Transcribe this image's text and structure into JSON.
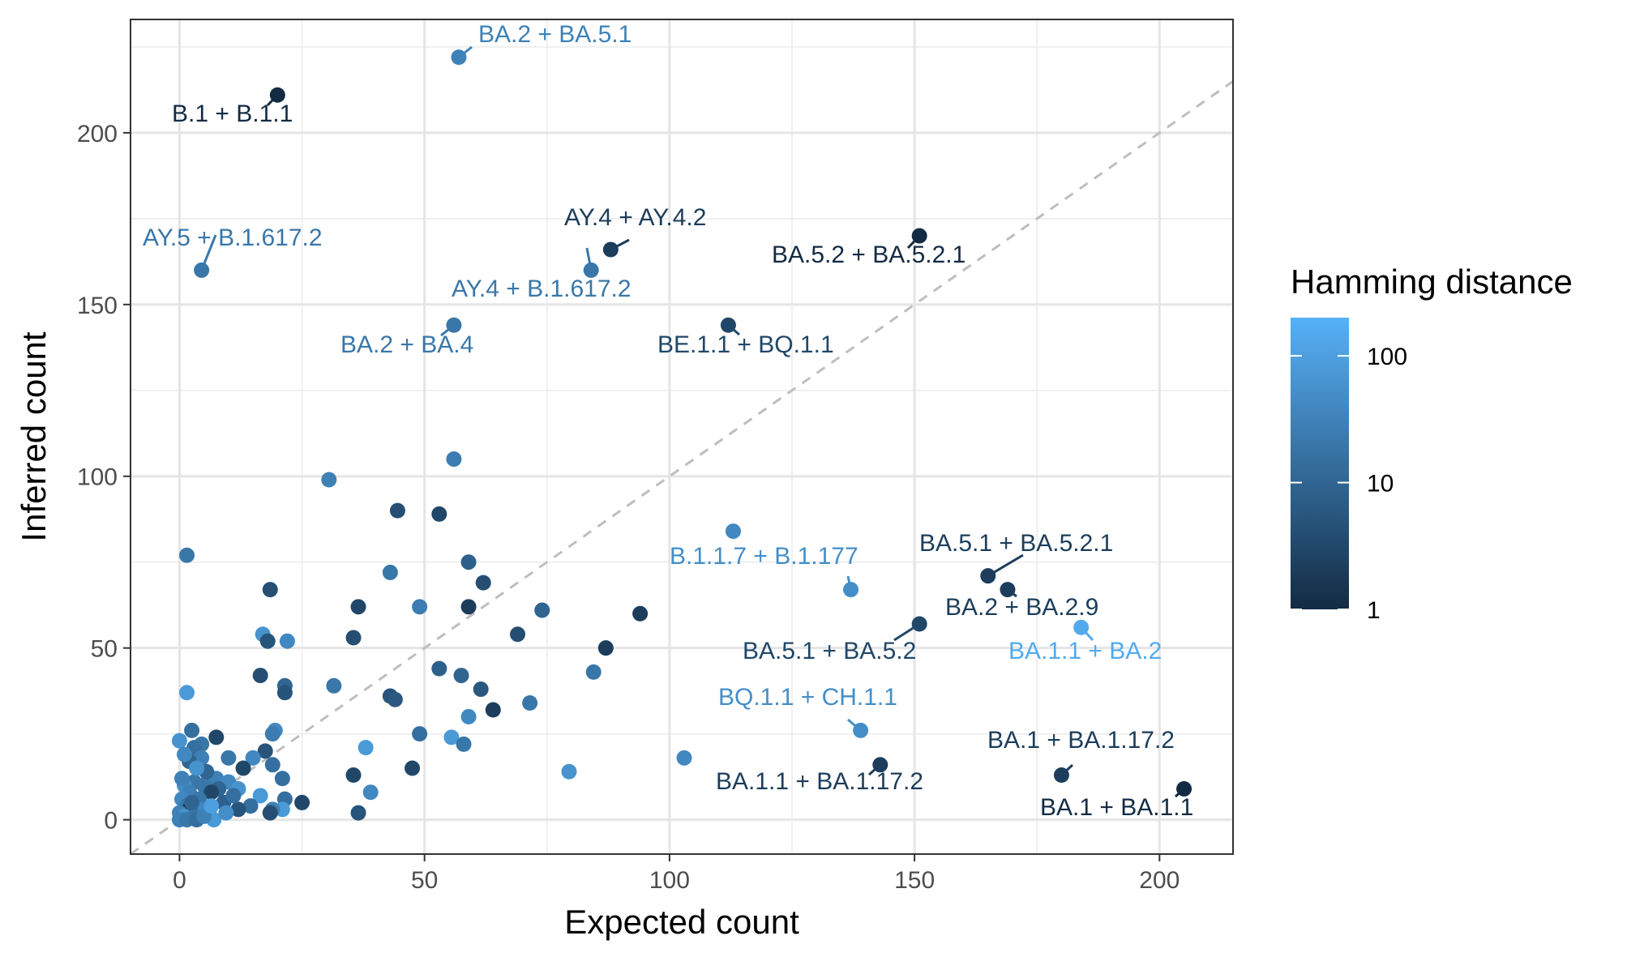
{
  "chart_data": {
    "type": "scatter",
    "xlabel": "Expected count",
    "ylabel": "Inferred count",
    "xlim": [
      -10,
      215
    ],
    "ylim": [
      -10,
      233
    ],
    "x_ticks": [
      0,
      50,
      100,
      150,
      200
    ],
    "y_ticks": [
      0,
      50,
      100,
      150,
      200
    ],
    "grid": true,
    "reference_line": "y = x (dashed, grey)",
    "legend": {
      "title": "Hamming distance",
      "type": "colorbar",
      "scale": "log",
      "range": [
        1,
        200
      ],
      "ticks": [
        1,
        10,
        100
      ],
      "tick_labels": [
        "1",
        "10",
        "100"
      ],
      "low_color": "#132B43",
      "high_color": "#56B1F7",
      "placement": "right"
    },
    "annotations": [
      {
        "label": "BA.2 + BA.5.1",
        "x": 57,
        "y": 222,
        "hd": 30
      },
      {
        "label": "B.1 + B.1.1",
        "x": 20,
        "y": 211,
        "hd": 1
      },
      {
        "label": "AY.5 + B.1.617.2",
        "x": 4.5,
        "y": 160,
        "hd": 20
      },
      {
        "label": "AY.4 + AY.4.2",
        "x": 88,
        "y": 166,
        "hd": 2
      },
      {
        "label": "AY.4 + B.1.617.2",
        "x": 84,
        "y": 160,
        "hd": 20
      },
      {
        "label": "BA.5.2 + BA.5.2.1",
        "x": 151,
        "y": 170,
        "hd": 1
      },
      {
        "label": "BA.2 + BA.4",
        "x": 56,
        "y": 144,
        "hd": 20
      },
      {
        "label": "BE.1.1 + BQ.1.1",
        "x": 112,
        "y": 144,
        "hd": 3
      },
      {
        "label": "B.1.1.7 + B.1.177",
        "x": 137,
        "y": 67,
        "hd": 50
      },
      {
        "label": "BA.5.1 + BA.5.2.1",
        "x": 165,
        "y": 71,
        "hd": 2
      },
      {
        "label": "BA.2 + BA.2.9",
        "x": 169,
        "y": 67,
        "hd": 2
      },
      {
        "label": "BA.5.1 + BA.5.2",
        "x": 151,
        "y": 57,
        "hd": 3
      },
      {
        "label": "BA.1.1 + BA.2",
        "x": 184,
        "y": 56,
        "hd": 150
      },
      {
        "label": "BQ.1.1 + CH.1.1",
        "x": 139,
        "y": 26,
        "hd": 50
      },
      {
        "label": "BA.1 + BA.1.17.2",
        "x": 180,
        "y": 13,
        "hd": 2
      },
      {
        "label": "BA.1.1 + BA.1.17.2",
        "x": 143,
        "y": 16,
        "hd": 2
      },
      {
        "label": "BA.1 + BA.1.1",
        "x": 205,
        "y": 9,
        "hd": 1
      }
    ],
    "points": [
      {
        "x": 56,
        "y": 105,
        "hd": 25
      },
      {
        "x": 30.5,
        "y": 99,
        "hd": 30
      },
      {
        "x": 44.5,
        "y": 90,
        "hd": 4
      },
      {
        "x": 53,
        "y": 89,
        "hd": 3
      },
      {
        "x": 113,
        "y": 84,
        "hd": 40
      },
      {
        "x": 1.5,
        "y": 77,
        "hd": 20
      },
      {
        "x": 59,
        "y": 75,
        "hd": 8
      },
      {
        "x": 43,
        "y": 72,
        "hd": 20
      },
      {
        "x": 62,
        "y": 69,
        "hd": 4
      },
      {
        "x": 18.5,
        "y": 67,
        "hd": 4
      },
      {
        "x": 36.5,
        "y": 62,
        "hd": 3
      },
      {
        "x": 49,
        "y": 62,
        "hd": 25
      },
      {
        "x": 59,
        "y": 62,
        "hd": 2
      },
      {
        "x": 74,
        "y": 61,
        "hd": 10
      },
      {
        "x": 94,
        "y": 60,
        "hd": 2
      },
      {
        "x": 17,
        "y": 54,
        "hd": 60
      },
      {
        "x": 69,
        "y": 54,
        "hd": 4
      },
      {
        "x": 35.5,
        "y": 53,
        "hd": 4
      },
      {
        "x": 18,
        "y": 52,
        "hd": 5
      },
      {
        "x": 22,
        "y": 52,
        "hd": 40
      },
      {
        "x": 87,
        "y": 50,
        "hd": 2
      },
      {
        "x": 53,
        "y": 44,
        "hd": 8
      },
      {
        "x": 84.5,
        "y": 43,
        "hd": 20
      },
      {
        "x": 57.5,
        "y": 42,
        "hd": 10
      },
      {
        "x": 16.5,
        "y": 42,
        "hd": 4
      },
      {
        "x": 31.5,
        "y": 39,
        "hd": 20
      },
      {
        "x": 21.5,
        "y": 39,
        "hd": 10
      },
      {
        "x": 61.5,
        "y": 38,
        "hd": 6
      },
      {
        "x": 1.5,
        "y": 37,
        "hd": 80
      },
      {
        "x": 21.5,
        "y": 37,
        "hd": 5
      },
      {
        "x": 43,
        "y": 36,
        "hd": 5
      },
      {
        "x": 44,
        "y": 35,
        "hd": 6
      },
      {
        "x": 71.5,
        "y": 34,
        "hd": 20
      },
      {
        "x": 64,
        "y": 32,
        "hd": 2
      },
      {
        "x": 59,
        "y": 30,
        "hd": 40
      },
      {
        "x": 2.5,
        "y": 26,
        "hd": 15
      },
      {
        "x": 19.5,
        "y": 26,
        "hd": 40
      },
      {
        "x": 19,
        "y": 25,
        "hd": 25
      },
      {
        "x": 49,
        "y": 25,
        "hd": 15
      },
      {
        "x": 7.5,
        "y": 24,
        "hd": 3
      },
      {
        "x": 55.5,
        "y": 24,
        "hd": 80
      },
      {
        "x": 0,
        "y": 23,
        "hd": 60
      },
      {
        "x": 4.5,
        "y": 22,
        "hd": 20
      },
      {
        "x": 58,
        "y": 22,
        "hd": 20
      },
      {
        "x": 38,
        "y": 21,
        "hd": 80
      },
      {
        "x": 3,
        "y": 21,
        "hd": 15
      },
      {
        "x": 17.5,
        "y": 20,
        "hd": 5
      },
      {
        "x": 4.5,
        "y": 18,
        "hd": 30
      },
      {
        "x": 10,
        "y": 18,
        "hd": 20
      },
      {
        "x": 15,
        "y": 18,
        "hd": 40
      },
      {
        "x": 103,
        "y": 18,
        "hd": 40
      },
      {
        "x": 2,
        "y": 17,
        "hd": 10
      },
      {
        "x": 19,
        "y": 16,
        "hd": 15
      },
      {
        "x": 13,
        "y": 15,
        "hd": 3
      },
      {
        "x": 47.5,
        "y": 15,
        "hd": 3
      },
      {
        "x": 79.5,
        "y": 14,
        "hd": 60
      },
      {
        "x": 35.5,
        "y": 13,
        "hd": 3
      },
      {
        "x": 6,
        "y": 12,
        "hd": 20
      },
      {
        "x": 7.5,
        "y": 12,
        "hd": 30
      },
      {
        "x": 21,
        "y": 12,
        "hd": 15
      },
      {
        "x": 10,
        "y": 11,
        "hd": 40
      },
      {
        "x": 3,
        "y": 11,
        "hd": 20
      },
      {
        "x": 1,
        "y": 10,
        "hd": 50
      },
      {
        "x": 5,
        "y": 10,
        "hd": 20
      },
      {
        "x": 12,
        "y": 9,
        "hd": 60
      },
      {
        "x": 8,
        "y": 9,
        "hd": 10
      },
      {
        "x": 2,
        "y": 8,
        "hd": 30
      },
      {
        "x": 6.5,
        "y": 8,
        "hd": 3
      },
      {
        "x": 39,
        "y": 8,
        "hd": 40
      },
      {
        "x": 16.5,
        "y": 7,
        "hd": 80
      },
      {
        "x": 21.5,
        "y": 6,
        "hd": 15
      },
      {
        "x": 0.5,
        "y": 6,
        "hd": 40
      },
      {
        "x": 4,
        "y": 6,
        "hd": 20
      },
      {
        "x": 25,
        "y": 5,
        "hd": 3
      },
      {
        "x": 9,
        "y": 5,
        "hd": 8
      },
      {
        "x": 14.5,
        "y": 4,
        "hd": 15
      },
      {
        "x": 1.5,
        "y": 4,
        "hd": 20
      },
      {
        "x": 4,
        "y": 3,
        "hd": 40
      },
      {
        "x": 12,
        "y": 3,
        "hd": 5
      },
      {
        "x": 21,
        "y": 3,
        "hd": 80
      },
      {
        "x": 19,
        "y": 3,
        "hd": 30
      },
      {
        "x": 2,
        "y": 3,
        "hd": 1
      },
      {
        "x": 36.5,
        "y": 2,
        "hd": 5
      },
      {
        "x": 18.5,
        "y": 2,
        "hd": 4
      },
      {
        "x": 0,
        "y": 2,
        "hd": 30
      },
      {
        "x": 6,
        "y": 2,
        "hd": 40
      },
      {
        "x": 1,
        "y": 1,
        "hd": 60
      },
      {
        "x": 3,
        "y": 1,
        "hd": 20
      },
      {
        "x": 7,
        "y": 0,
        "hd": 80
      },
      {
        "x": 0,
        "y": 0,
        "hd": 30
      },
      {
        "x": 1.5,
        "y": 0,
        "hd": 20
      },
      {
        "x": 3.5,
        "y": 0,
        "hd": 15
      },
      {
        "x": 5,
        "y": 1,
        "hd": 30
      },
      {
        "x": 2.5,
        "y": 5,
        "hd": 10
      },
      {
        "x": 0.5,
        "y": 12,
        "hd": 30
      },
      {
        "x": 5.5,
        "y": 14,
        "hd": 10
      },
      {
        "x": 9.5,
        "y": 2,
        "hd": 50
      },
      {
        "x": 11,
        "y": 7,
        "hd": 15
      },
      {
        "x": 3.5,
        "y": 15,
        "hd": 60
      },
      {
        "x": 1,
        "y": 19,
        "hd": 40
      },
      {
        "x": 6.5,
        "y": 4,
        "hd": 100
      }
    ]
  }
}
